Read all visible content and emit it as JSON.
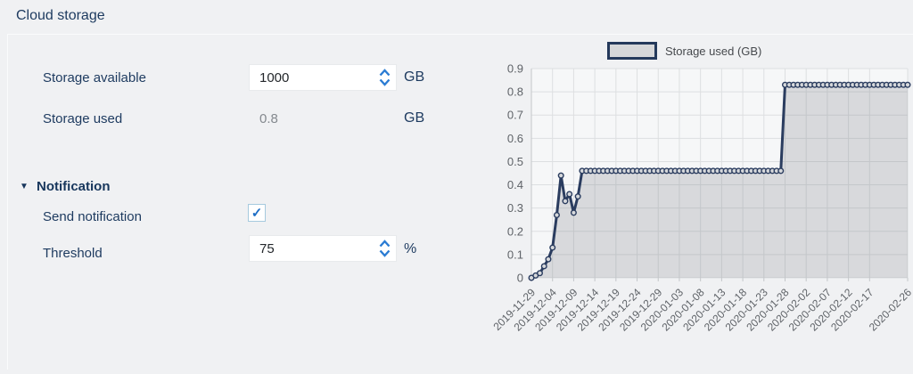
{
  "page": {
    "title": "Cloud storage"
  },
  "icons": {
    "check": "✓",
    "collapse": "▼"
  },
  "form": {
    "storage_available": {
      "label": "Storage available",
      "value": "1000",
      "unit": "GB"
    },
    "storage_used": {
      "label": "Storage used",
      "value": "0.8",
      "unit": "GB"
    },
    "notification": {
      "header": "Notification",
      "send_notification": {
        "label": "Send notification",
        "checked": true
      },
      "threshold": {
        "label": "Threshold",
        "value": "75",
        "unit": "%"
      }
    }
  },
  "chart": {
    "legend": {
      "label": "Storage used (GB)"
    }
  },
  "chart_data": {
    "type": "area",
    "title": "",
    "legend_entries": [
      "Storage used (GB)"
    ],
    "legend_position": "top",
    "grid": true,
    "x_start_date": "2019-11-29",
    "x_end_date": "2020-02-26",
    "x_interval": "daily",
    "x_tick_labels": [
      "2019-11-29",
      "2019-12-04",
      "2019-12-09",
      "2019-12-14",
      "2019-12-19",
      "2019-12-24",
      "2019-12-29",
      "2020-01-03",
      "2020-01-08",
      "2020-01-13",
      "2020-01-18",
      "2020-01-23",
      "2020-01-28",
      "2020-02-02",
      "2020-02-07",
      "2020-02-12",
      "2020-02-17",
      "2020-02-26"
    ],
    "x_tick_days": [
      0,
      5,
      10,
      15,
      20,
      25,
      30,
      35,
      40,
      45,
      50,
      55,
      60,
      65,
      70,
      75,
      80,
      89
    ],
    "ylim": [
      0,
      0.9
    ],
    "y_ticks": [
      0,
      0.1,
      0.2,
      0.3,
      0.4,
      0.5,
      0.6,
      0.7,
      0.8,
      0.9
    ],
    "series": [
      {
        "name": "Storage used (GB)",
        "values": [
          0,
          0.01,
          0.02,
          0.05,
          0.08,
          0.13,
          0.27,
          0.44,
          0.33,
          0.36,
          0.28,
          0.35,
          0.46,
          0.46,
          0.46,
          0.46,
          0.46,
          0.46,
          0.46,
          0.46,
          0.46,
          0.46,
          0.46,
          0.46,
          0.46,
          0.46,
          0.46,
          0.46,
          0.46,
          0.46,
          0.46,
          0.46,
          0.46,
          0.46,
          0.46,
          0.46,
          0.46,
          0.46,
          0.46,
          0.46,
          0.46,
          0.46,
          0.46,
          0.46,
          0.46,
          0.46,
          0.46,
          0.46,
          0.46,
          0.46,
          0.46,
          0.46,
          0.46,
          0.46,
          0.46,
          0.46,
          0.46,
          0.46,
          0.46,
          0.46,
          0.83,
          0.83,
          0.83,
          0.83,
          0.83,
          0.83,
          0.83,
          0.83,
          0.83,
          0.83,
          0.83,
          0.83,
          0.83,
          0.83,
          0.83,
          0.83,
          0.83,
          0.83,
          0.83,
          0.83,
          0.83,
          0.83,
          0.83,
          0.83,
          0.83,
          0.83,
          0.83,
          0.83,
          0.83,
          0.83
        ]
      }
    ]
  },
  "colors": {
    "page_bg": "#f0f1f3",
    "navy_text": "#1d3a5f",
    "accent_blue": "#2b7cd3",
    "disabled_text": "#84898e",
    "checkbox_border": "#a6cade",
    "checkbox_check": "#1e6ec6",
    "line": "#2a3c5f",
    "marker_fill": "#d6d8db",
    "area_fill": "rgba(110,115,122,0.22)",
    "plot_bg": "#f6f7f8",
    "grid": "#dddfe1",
    "axis": "#c4c7ca",
    "tick_text": "#5f6368",
    "legend_swatch_fill": "#d6d7d9",
    "legend_border": "#24395b"
  }
}
